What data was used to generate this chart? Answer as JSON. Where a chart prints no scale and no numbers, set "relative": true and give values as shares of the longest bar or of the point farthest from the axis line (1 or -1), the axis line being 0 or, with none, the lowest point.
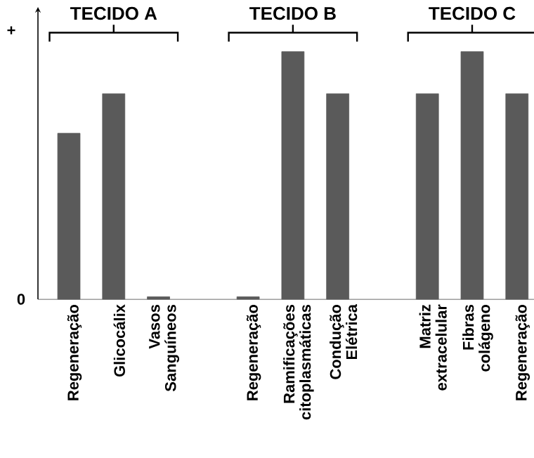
{
  "chart_data": {
    "type": "bar",
    "relative": true,
    "color": "#5a5a5a",
    "categories": [
      "Regeneração",
      "Glicocálix",
      "Vasos Sanguíneos",
      null,
      "Regeneração",
      "Ramificações citoplasmáticas",
      "Condução Elétrica",
      null,
      "Matriz extracelular",
      "Fibras colágeno",
      "Regeneração"
    ],
    "values": [
      0.67,
      0.83,
      0.01,
      null,
      0.01,
      1,
      0.83,
      null,
      0.83,
      1,
      0.83
    ],
    "annotations": [
      "+",
      "0",
      "TECIDO A",
      "TECIDO B",
      "TECIDO C"
    ]
  }
}
